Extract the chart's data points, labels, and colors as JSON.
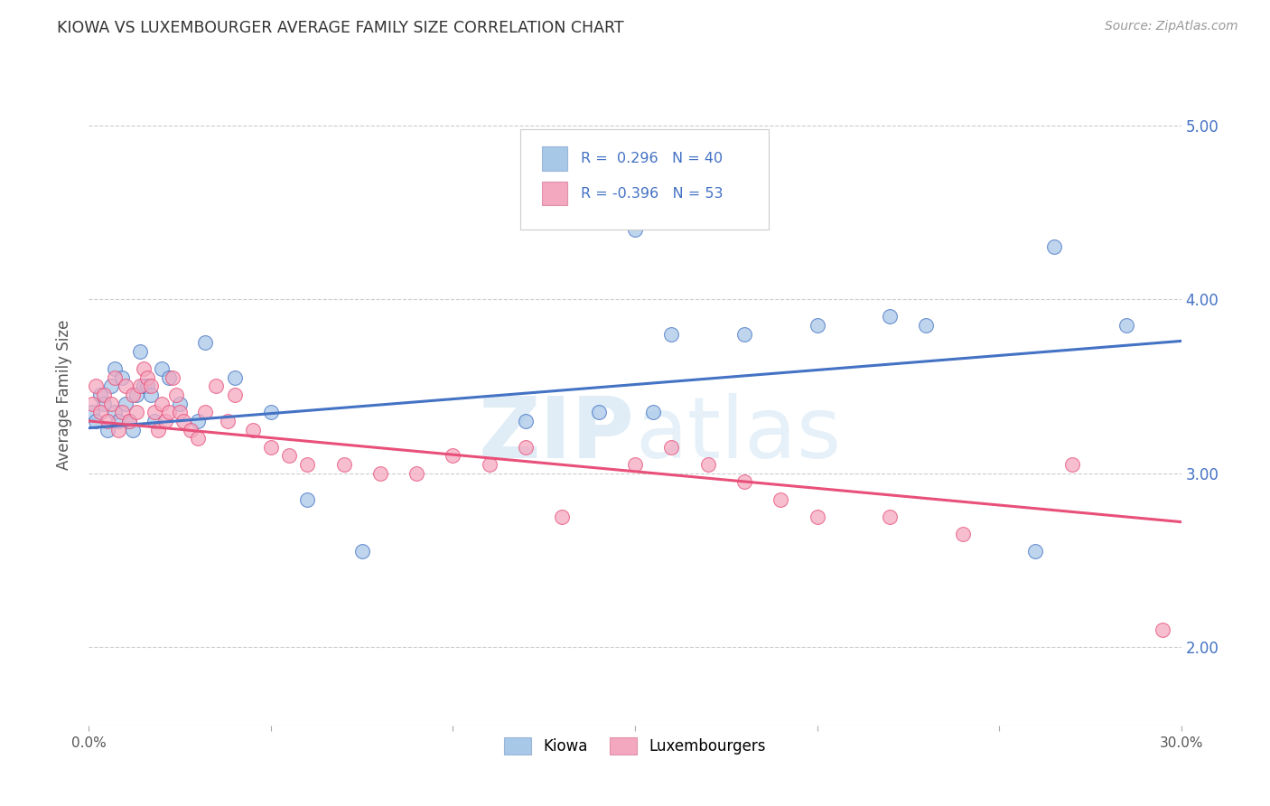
{
  "title": "KIOWA VS LUXEMBOURGER AVERAGE FAMILY SIZE CORRELATION CHART",
  "source": "Source: ZipAtlas.com",
  "ylabel": "Average Family Size",
  "y_ticks": [
    2.0,
    3.0,
    4.0,
    5.0
  ],
  "x_min": 0.0,
  "x_max": 0.3,
  "y_min": 1.55,
  "y_max": 5.35,
  "kiowa_color": "#a8c8e8",
  "luxembourger_color": "#f4a8c0",
  "line_kiowa_color": "#4472c4",
  "line_luxembourger_color": "#e8507a",
  "watermark_color": "#d8eaf8",
  "kiowa_x": [
    0.001,
    0.002,
    0.003,
    0.004,
    0.005,
    0.006,
    0.007,
    0.007,
    0.008,
    0.009,
    0.01,
    0.011,
    0.012,
    0.013,
    0.014,
    0.015,
    0.016,
    0.017,
    0.018,
    0.02,
    0.022,
    0.025,
    0.03,
    0.032,
    0.04,
    0.05,
    0.06,
    0.12,
    0.15,
    0.16,
    0.18,
    0.2,
    0.23,
    0.26,
    0.265,
    0.285,
    0.155,
    0.14,
    0.22,
    0.075
  ],
  "kiowa_y": [
    3.35,
    3.3,
    3.45,
    3.4,
    3.25,
    3.5,
    3.6,
    3.35,
    3.3,
    3.55,
    3.4,
    3.3,
    3.25,
    3.45,
    3.7,
    3.5,
    3.5,
    3.45,
    3.3,
    3.6,
    3.55,
    3.4,
    3.3,
    3.75,
    3.55,
    3.35,
    2.85,
    3.3,
    4.4,
    3.8,
    3.8,
    3.85,
    3.85,
    2.55,
    4.3,
    3.85,
    3.35,
    3.35,
    3.9,
    2.55
  ],
  "luxembourger_x": [
    0.001,
    0.002,
    0.003,
    0.004,
    0.005,
    0.006,
    0.007,
    0.008,
    0.009,
    0.01,
    0.011,
    0.012,
    0.013,
    0.014,
    0.015,
    0.016,
    0.017,
    0.018,
    0.019,
    0.02,
    0.021,
    0.022,
    0.023,
    0.024,
    0.025,
    0.026,
    0.028,
    0.03,
    0.032,
    0.035,
    0.038,
    0.04,
    0.045,
    0.05,
    0.055,
    0.06,
    0.07,
    0.08,
    0.09,
    0.1,
    0.11,
    0.12,
    0.13,
    0.15,
    0.16,
    0.17,
    0.18,
    0.19,
    0.2,
    0.22,
    0.24,
    0.27,
    0.295
  ],
  "luxembourger_y": [
    3.4,
    3.5,
    3.35,
    3.45,
    3.3,
    3.4,
    3.55,
    3.25,
    3.35,
    3.5,
    3.3,
    3.45,
    3.35,
    3.5,
    3.6,
    3.55,
    3.5,
    3.35,
    3.25,
    3.4,
    3.3,
    3.35,
    3.55,
    3.45,
    3.35,
    3.3,
    3.25,
    3.2,
    3.35,
    3.5,
    3.3,
    3.45,
    3.25,
    3.15,
    3.1,
    3.05,
    3.05,
    3.0,
    3.0,
    3.1,
    3.05,
    3.15,
    2.75,
    3.05,
    3.15,
    3.05,
    2.95,
    2.85,
    2.75,
    2.75,
    2.65,
    3.05,
    2.1
  ],
  "kiowa_line_y0": 3.26,
  "kiowa_line_y1": 3.76,
  "luxembourger_line_y0": 3.3,
  "luxembourger_line_y1": 2.72
}
